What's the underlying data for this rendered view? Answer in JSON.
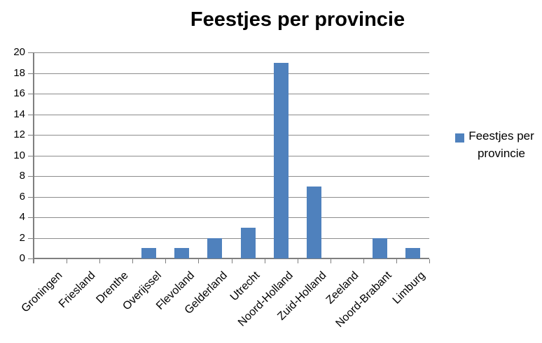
{
  "chart_data": {
    "type": "bar",
    "title": "Feestjes per provincie",
    "categories": [
      "Groningen",
      "Friesland",
      "Drenthe",
      "Overijssel",
      "Flevoland",
      "Gelderland",
      "Utrecht",
      "Noord-Holland",
      "Zuid-Holland",
      "Zeeland",
      "Noord-Brabant",
      "Limburg"
    ],
    "values": [
      0,
      0,
      0,
      1,
      1,
      2,
      3,
      19,
      7,
      0,
      2,
      1
    ],
    "series": [
      {
        "name": "Feestjes per provincie",
        "values": [
          0,
          0,
          0,
          1,
          1,
          2,
          3,
          19,
          7,
          0,
          2,
          1
        ]
      }
    ],
    "legend": {
      "label": "Feestjes per provincie",
      "position": "right"
    },
    "xlabel": "",
    "ylabel": "",
    "ylim": [
      0,
      20
    ],
    "yticks": [
      0,
      2,
      4,
      6,
      8,
      10,
      12,
      14,
      16,
      18,
      20
    ],
    "grid": true,
    "colors": {
      "bar": "#4F81BD",
      "gridline": "#8C8C8C",
      "axis": "#7F7F7F",
      "text": "#000000",
      "background": "#FFFFFF"
    }
  }
}
